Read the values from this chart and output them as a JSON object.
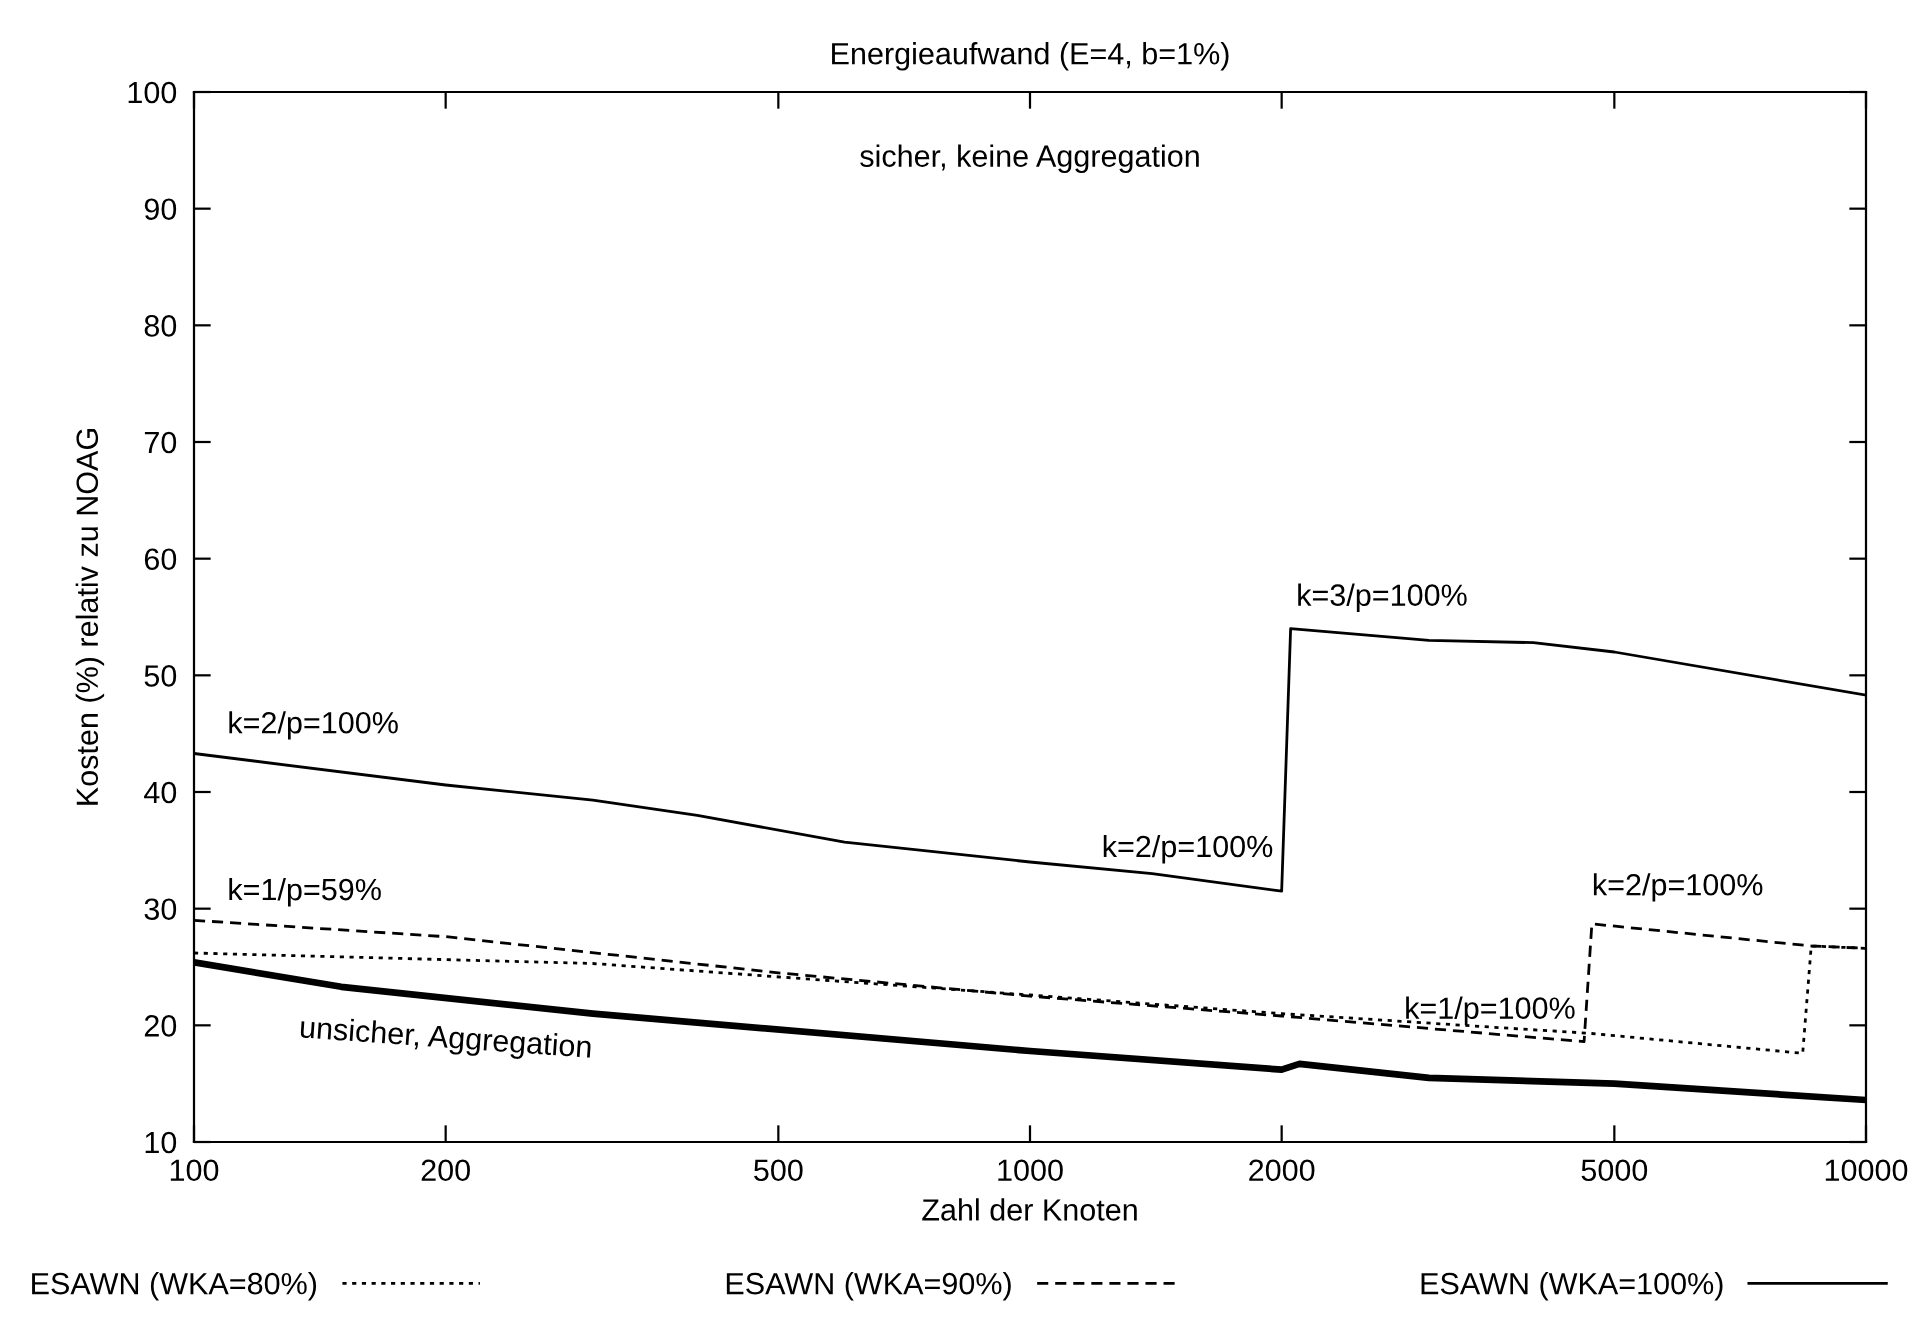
{
  "chart_data": {
    "type": "line",
    "title": "Energieaufwand (E=4, b=1%)",
    "xlabel": "Zahl der Knoten",
    "ylabel": "Kosten (%) relativ zu NOAG",
    "log": "x",
    "xlim": [
      100,
      10000
    ],
    "xticks": [
      100,
      200,
      500,
      1000,
      2000,
      5000,
      10000
    ],
    "ylim": [
      10,
      100
    ],
    "yticks": [
      10,
      20,
      30,
      40,
      50,
      60,
      70,
      80,
      90,
      100
    ],
    "grid": false,
    "legend": "bottom",
    "marker": "none",
    "series": [
      {
        "name": "ESAWN (WKA=80%)",
        "color": "#000000",
        "line_style": "dotted",
        "x": [
          100,
          300,
          1000,
          2000,
          4700,
          8400,
          8600,
          10000
        ],
        "values": [
          26.2,
          25.3,
          22.6,
          21,
          19.3,
          17.6,
          26.8,
          26.6
        ]
      },
      {
        "name": "ESAWN (WKA=90%)",
        "color": "#000000",
        "line_style": "dashed",
        "x": [
          100,
          200,
          500,
          1000,
          2000,
          4600,
          4700,
          8600,
          10000
        ],
        "values": [
          29,
          27.6,
          24.5,
          22.5,
          20.8,
          18.6,
          28.7,
          26.8,
          26.6
        ]
      },
      {
        "name": "ESAWN (WKA=100%)",
        "color": "#000000",
        "line_style": "solid",
        "x": [
          100,
          200,
          300,
          400,
          600,
          1000,
          1400,
          2000,
          2050,
          3000,
          4000,
          5000,
          10000
        ],
        "values": [
          43.3,
          40.6,
          39.3,
          38,
          35.7,
          34,
          33,
          31.5,
          54,
          53,
          52.8,
          52,
          48.3
        ]
      },
      {
        "color": "#000000",
        "line_style": "solid",
        "x": [
          100,
          150,
          300,
          1000,
          2000,
          2100,
          3000,
          5000,
          10000
        ],
        "values": [
          25.4,
          23.3,
          21,
          17.8,
          16.2,
          16.7,
          15.5,
          15.0,
          13.6
        ]
      }
    ],
    "annotations": [
      "sicher, keine Aggregation",
      {
        "text": "k=2/p=100%",
        "x": 100,
        "y": 43.3
      },
      {
        "text": "k=3/p=100%",
        "x": 2050,
        "y": 54
      },
      {
        "text": "k=2/p=100%",
        "x": 2000,
        "y": 31.5
      },
      {
        "text": "k=1/p=59%",
        "x": 100,
        "y": 29
      },
      {
        "text": "k=1/p=100%",
        "x": 4600,
        "y": 18.6
      },
      {
        "text": "k=2/p=100%",
        "x": 4700,
        "y": 28.7
      },
      {
        "text": "unsicher, Aggregation",
        "x": 200,
        "y": 22.3
      }
    ]
  }
}
